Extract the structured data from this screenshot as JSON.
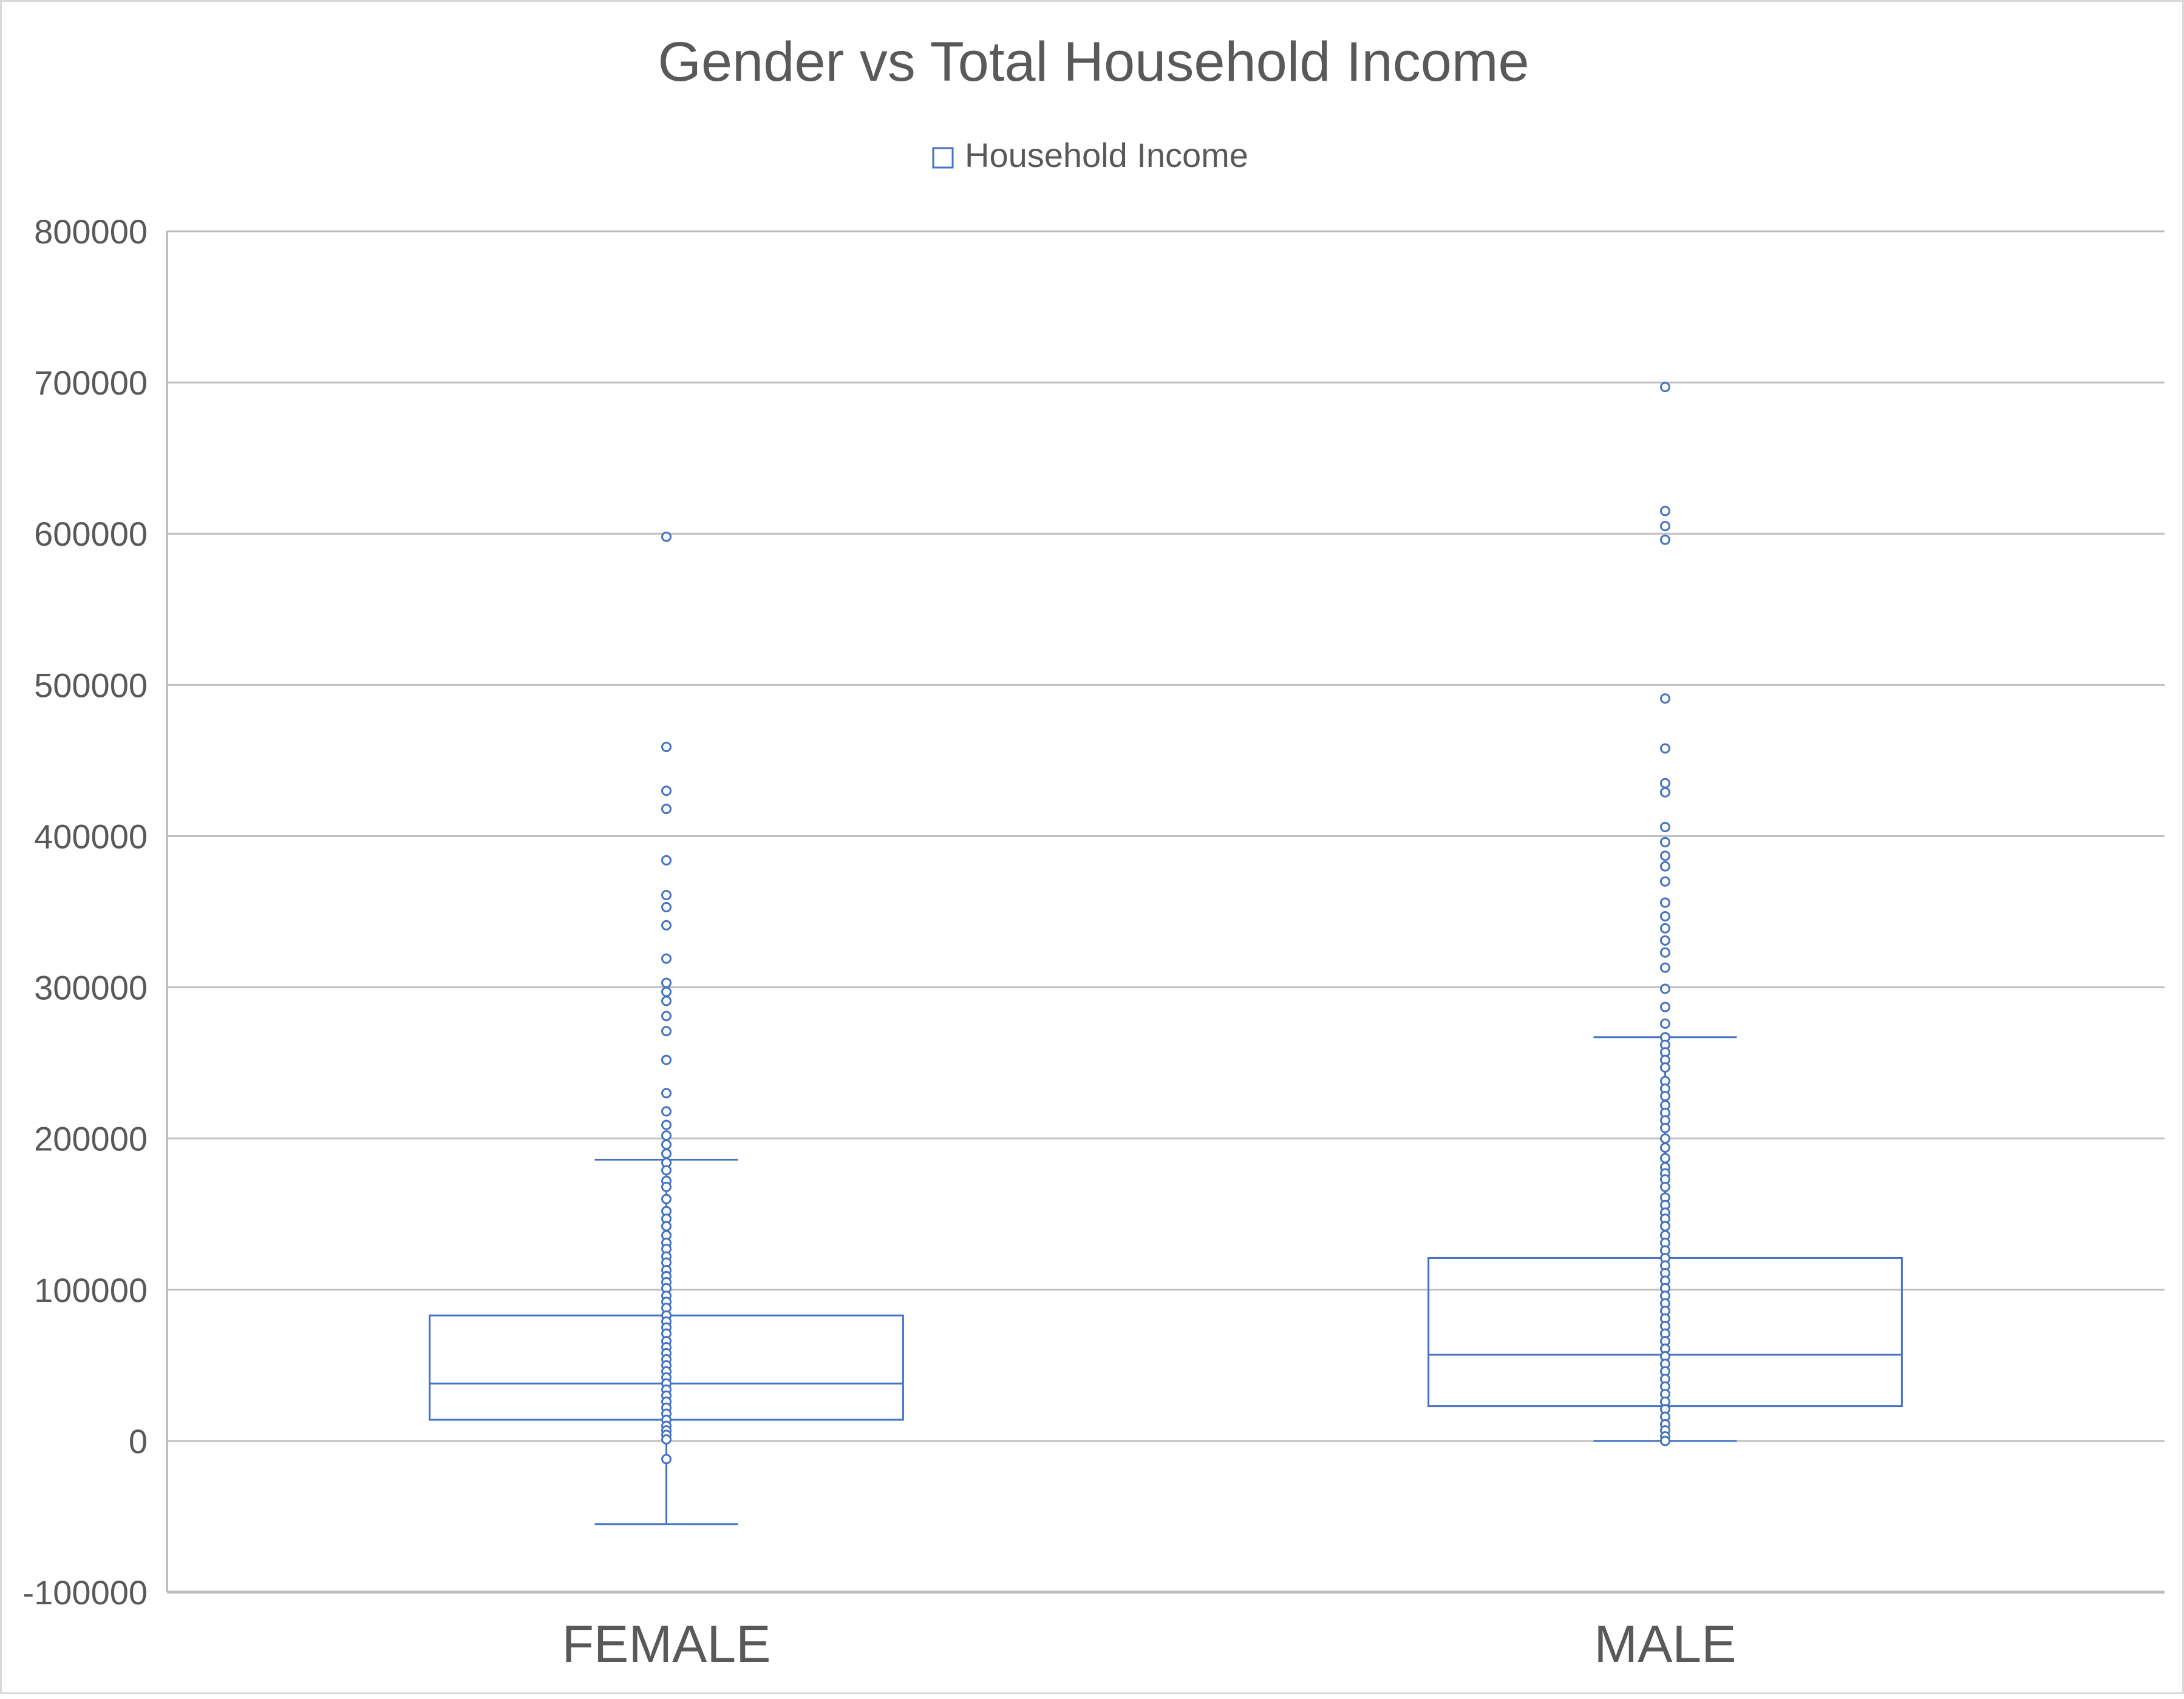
{
  "chart_data": {
    "type": "box",
    "title": "Gender vs Total Household Income",
    "legend": {
      "label": "Household Income",
      "position": "top"
    },
    "xlabel": "",
    "ylabel": "",
    "ylim": [
      -100000,
      800000
    ],
    "yticks": [
      -100000,
      0,
      100000,
      200000,
      300000,
      400000,
      500000,
      600000,
      700000,
      800000
    ],
    "grid": true,
    "series_color": "#4472c4",
    "categories": [
      "FEMALE",
      "MALE"
    ],
    "boxes": [
      {
        "category": "FEMALE",
        "whisker_low": -55000,
        "q1": 14000,
        "median": 38000,
        "q3": 83000,
        "whisker_high": 186000,
        "points": [
          598000,
          459000,
          430000,
          418000,
          384000,
          361000,
          353000,
          341000,
          319000,
          303000,
          297000,
          291000,
          281000,
          271000,
          252000,
          230000,
          218000,
          209000,
          202000,
          196000,
          190000,
          184000,
          179000,
          172000,
          168000,
          160000,
          152000,
          147000,
          142000,
          136000,
          131000,
          127000,
          122000,
          118000,
          113000,
          109000,
          105000,
          101000,
          96000,
          92000,
          88000,
          83000,
          79000,
          75000,
          71000,
          66000,
          62000,
          58000,
          54000,
          50000,
          46000,
          42000,
          38000,
          34000,
          30000,
          26000,
          22000,
          18000,
          14000,
          10000,
          7000,
          4000,
          1000,
          -12000
        ]
      },
      {
        "category": "MALE",
        "whisker_low": 0,
        "q1": 23000,
        "median": 57000,
        "q3": 121000,
        "whisker_high": 267000,
        "points": [
          697000,
          615000,
          605000,
          596000,
          491000,
          458000,
          435000,
          429000,
          406000,
          396000,
          387000,
          380000,
          370000,
          356000,
          347000,
          339000,
          331000,
          323000,
          313000,
          299000,
          287000,
          276000,
          267000,
          262000,
          257000,
          252000,
          247000,
          238000,
          233000,
          228000,
          222000,
          217000,
          212000,
          207000,
          200000,
          194000,
          187000,
          181000,
          177000,
          173000,
          168000,
          161000,
          156000,
          151000,
          147000,
          142000,
          136000,
          131000,
          126000,
          121000,
          116000,
          111000,
          106000,
          101000,
          96000,
          91000,
          86000,
          81000,
          76000,
          71000,
          66000,
          61000,
          56000,
          51000,
          46000,
          41000,
          36000,
          31000,
          26000,
          21000,
          16000,
          11000,
          7000,
          3000,
          0
        ]
      }
    ]
  }
}
